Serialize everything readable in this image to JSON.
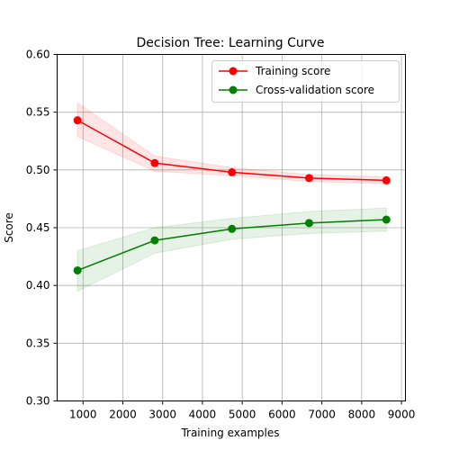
{
  "chart_data": {
    "type": "line",
    "title": "Decision Tree: Learning Curve",
    "xlabel": "Training examples",
    "ylabel": "Score",
    "xlim": [
      350,
      9100
    ],
    "ylim": [
      0.3,
      0.6
    ],
    "xticks": [
      1000,
      2000,
      3000,
      4000,
      5000,
      6000,
      7000,
      8000,
      9000
    ],
    "yticks": [
      0.3,
      0.35,
      0.4,
      0.45,
      0.5,
      0.55,
      0.6
    ],
    "xtick_labels": [
      "1000",
      "2000",
      "3000",
      "4000",
      "5000",
      "6000",
      "7000",
      "8000",
      "9000"
    ],
    "ytick_labels": [
      "0.30",
      "0.35",
      "0.40",
      "0.45",
      "0.50",
      "0.55",
      "0.60"
    ],
    "grid": true,
    "legend_position": "upper-right",
    "x": [
      862,
      2801,
      4741,
      6680,
      8620
    ],
    "series": [
      {
        "name": "Training score",
        "color": "#ff0000",
        "band_color": "#ff0000",
        "marker": "o",
        "values": [
          0.543,
          0.506,
          0.498,
          0.493,
          0.491
        ],
        "upper": [
          0.558,
          0.512,
          0.502,
          0.496,
          0.494
        ],
        "lower": [
          0.529,
          0.499,
          0.495,
          0.49,
          0.488
        ]
      },
      {
        "name": "Cross-validation score",
        "color": "#008000",
        "band_color": "#008000",
        "marker": "o",
        "values": [
          0.413,
          0.439,
          0.449,
          0.454,
          0.457
        ],
        "upper": [
          0.43,
          0.45,
          0.458,
          0.464,
          0.467
        ],
        "lower": [
          0.395,
          0.428,
          0.44,
          0.445,
          0.447
        ]
      }
    ]
  }
}
